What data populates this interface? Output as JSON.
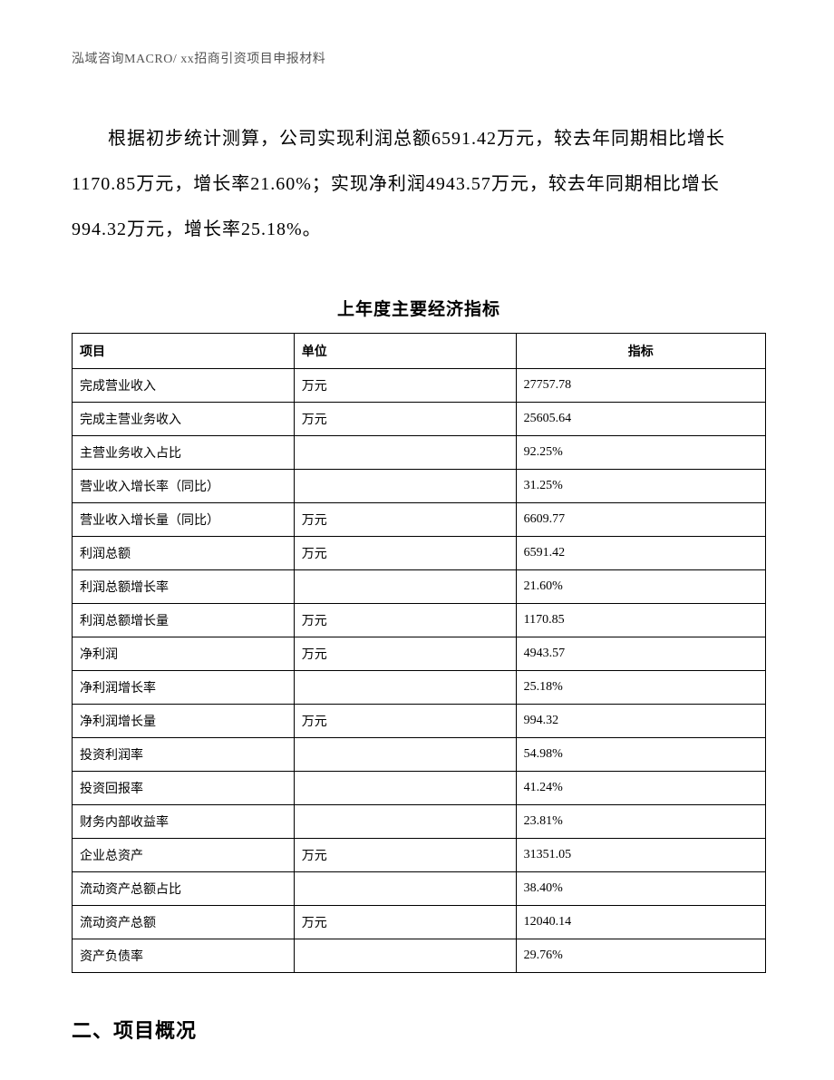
{
  "header": {
    "text": "泓域咨询MACRO/   xx招商引资项目申报材料"
  },
  "paragraph": {
    "text": "根据初步统计测算，公司实现利润总额6591.42万元，较去年同期相比增长1170.85万元，增长率21.60%；实现净利润4943.57万元，较去年同期相比增长994.32万元，增长率25.18%。"
  },
  "table": {
    "title": "上年度主要经济指标",
    "headers": {
      "item": "项目",
      "unit": "单位",
      "indicator": "指标"
    },
    "rows": [
      {
        "item": "完成营业收入",
        "unit": "万元",
        "indicator": "27757.78"
      },
      {
        "item": "完成主营业务收入",
        "unit": "万元",
        "indicator": "25605.64"
      },
      {
        "item": "主营业务收入占比",
        "unit": "",
        "indicator": "92.25%"
      },
      {
        "item": "营业收入增长率（同比）",
        "unit": "",
        "indicator": "31.25%"
      },
      {
        "item": "营业收入增长量（同比）",
        "unit": "万元",
        "indicator": "6609.77"
      },
      {
        "item": "利润总额",
        "unit": "万元",
        "indicator": "6591.42"
      },
      {
        "item": "利润总额增长率",
        "unit": "",
        "indicator": "21.60%"
      },
      {
        "item": "利润总额增长量",
        "unit": "万元",
        "indicator": "1170.85"
      },
      {
        "item": "净利润",
        "unit": "万元",
        "indicator": "4943.57"
      },
      {
        "item": "净利润增长率",
        "unit": "",
        "indicator": "25.18%"
      },
      {
        "item": "净利润增长量",
        "unit": "万元",
        "indicator": "994.32"
      },
      {
        "item": "投资利润率",
        "unit": "",
        "indicator": "54.98%"
      },
      {
        "item": "投资回报率",
        "unit": "",
        "indicator": "41.24%"
      },
      {
        "item": "财务内部收益率",
        "unit": "",
        "indicator": "23.81%"
      },
      {
        "item": "企业总资产",
        "unit": "万元",
        "indicator": "31351.05"
      },
      {
        "item": "流动资产总额占比",
        "unit": "",
        "indicator": "38.40%"
      },
      {
        "item": "流动资产总额",
        "unit": "万元",
        "indicator": "12040.14"
      },
      {
        "item": "资产负债率",
        "unit": "",
        "indicator": "29.76%"
      }
    ]
  },
  "section": {
    "heading": "二、项目概况"
  }
}
